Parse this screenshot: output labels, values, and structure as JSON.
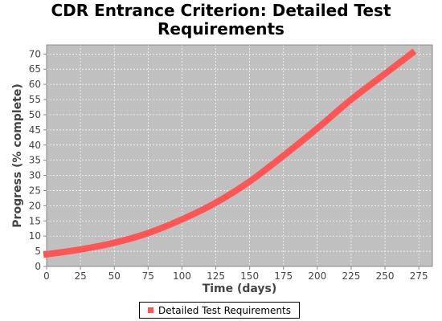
{
  "chart_data": {
    "type": "line",
    "title_lines": [
      "CDR Entrance Criterion: Detailed Test",
      "Requirements"
    ],
    "xlabel": "Time (days)",
    "ylabel": "Progress (% complete)",
    "xlim": [
      0,
      285
    ],
    "ylim": [
      0,
      73
    ],
    "x_ticks": [
      0,
      25,
      50,
      75,
      100,
      125,
      150,
      175,
      200,
      225,
      250,
      275
    ],
    "y_ticks": [
      0,
      5,
      10,
      15,
      20,
      25,
      30,
      35,
      40,
      45,
      50,
      55,
      60,
      65,
      70
    ],
    "grid": true,
    "legend_position": "bottom-center",
    "series": [
      {
        "name": "Detailed Test Requirements",
        "color": "#ff5555",
        "x": [
          0,
          25,
          50,
          75,
          100,
          125,
          150,
          175,
          200,
          225,
          250,
          270
        ],
        "y": [
          4,
          5.6,
          7.8,
          11,
          15.5,
          21,
          28,
          36.5,
          45.5,
          55,
          63.5,
          70.3
        ]
      }
    ]
  }
}
